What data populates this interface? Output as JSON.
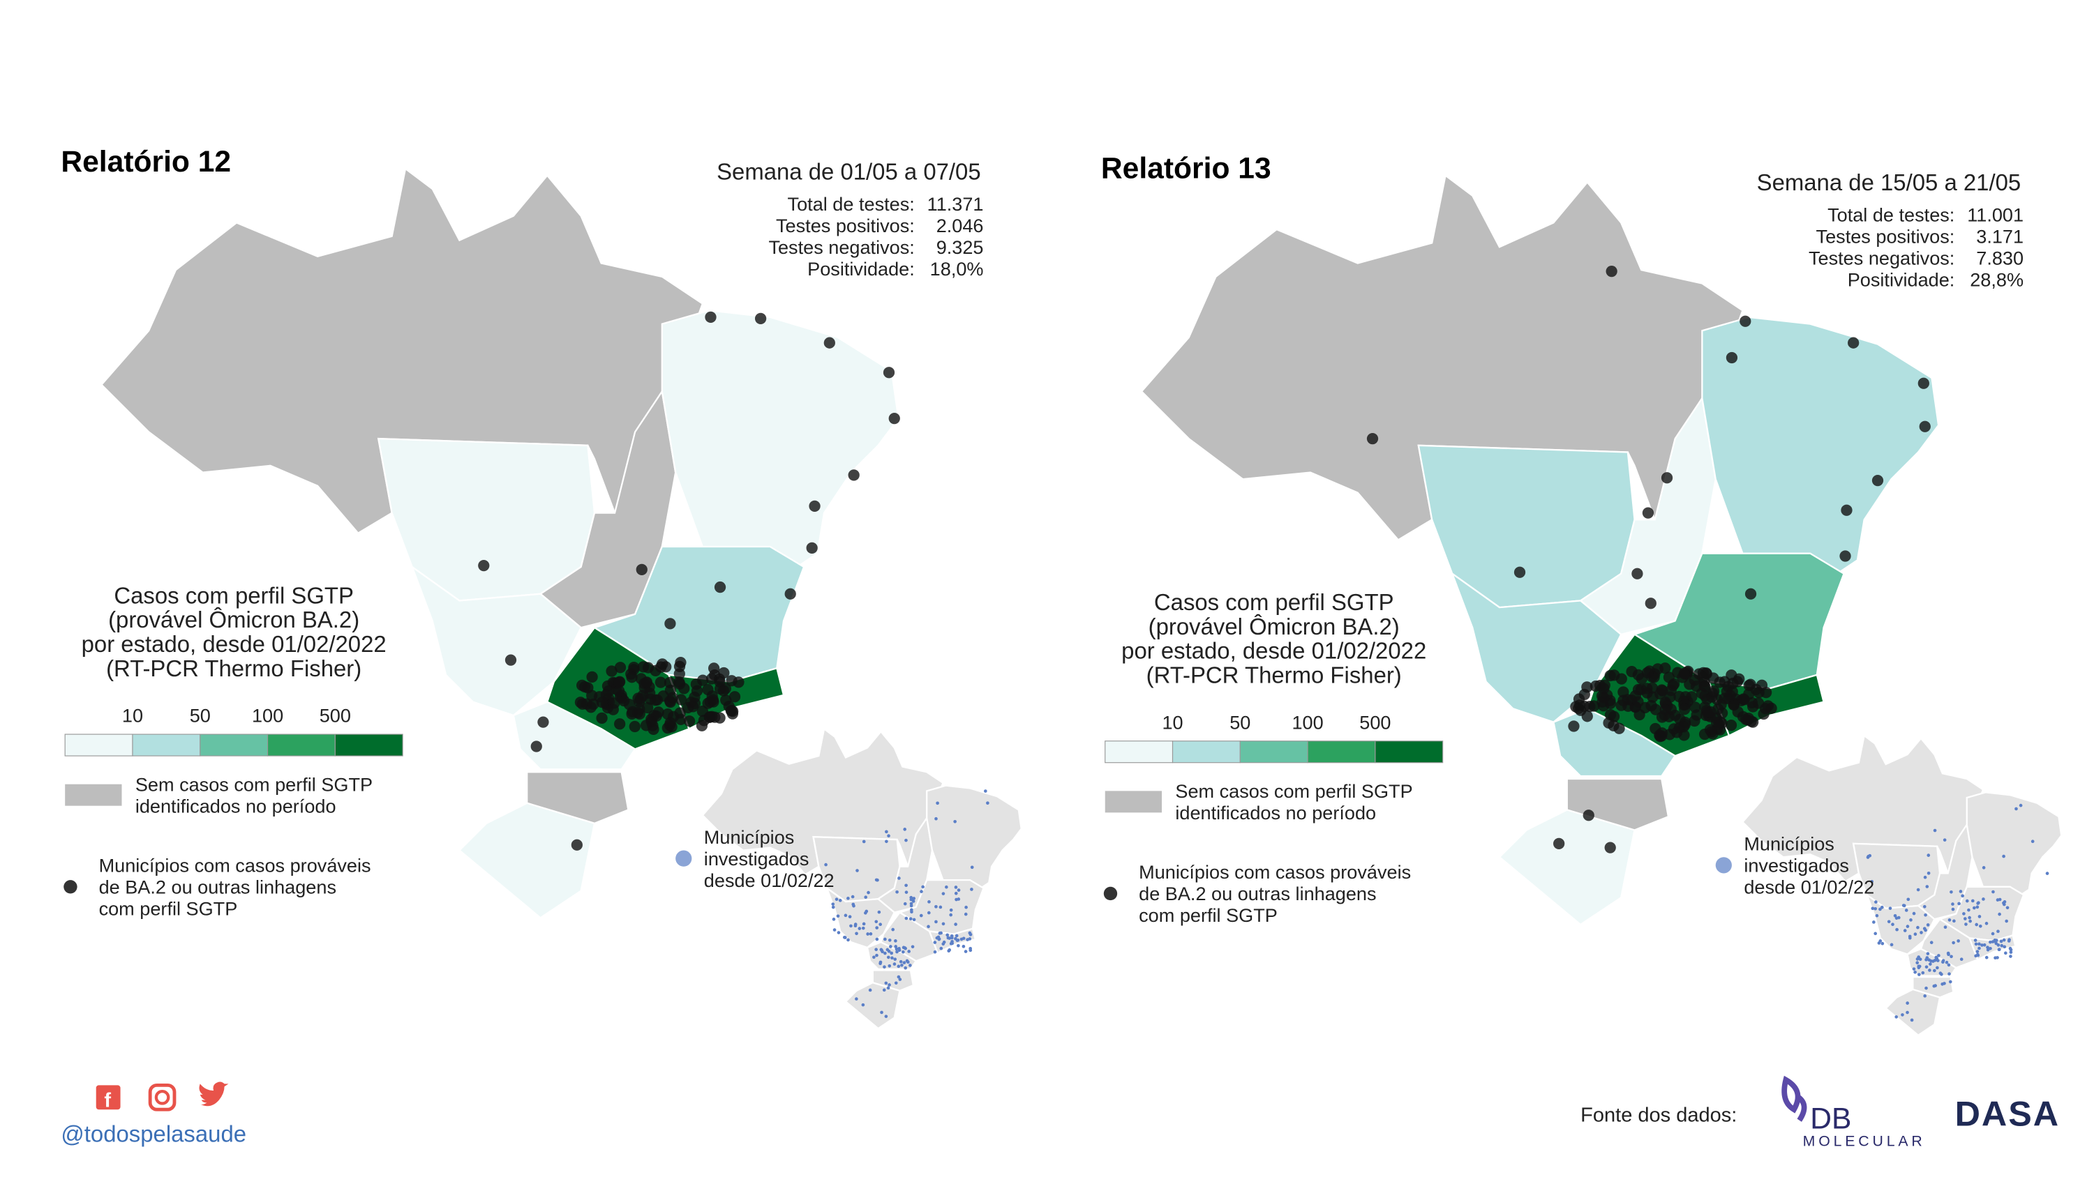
{
  "panels": [
    {
      "title": "Relatório 12",
      "week": "Semana de 01/05 a 07/05",
      "stats": [
        {
          "label": "Total de testes:",
          "value": "11.371"
        },
        {
          "label": "Testes positivos:",
          "value": "2.046"
        },
        {
          "label": "Testes negativos:",
          "value": "9.325"
        },
        {
          "label": "Positividade:",
          "value": "18,0%"
        }
      ],
      "legend_title": [
        "Casos com perfil SGTP",
        "(provável Ômicron BA.2)",
        "por estado, desde 01/02/2022",
        "(RT-PCR Thermo Fisher)"
      ],
      "legend_ticks": [
        10,
        50,
        100,
        500
      ],
      "no_cases": [
        "Sem casos com perfil SGTP",
        "identificados no período"
      ],
      "municipalities": [
        "Municípios com casos prováveis",
        "de BA.2 ou outras linhagens",
        "com perfil SGTP"
      ],
      "investigated": [
        "Municípios",
        "investigados",
        "desde 01/02/22"
      ]
    },
    {
      "title": "Relatório 13",
      "week": "Semana de 15/05 a 21/05",
      "stats": [
        {
          "label": "Total de testes:",
          "value": "11.001"
        },
        {
          "label": "Testes positivos:",
          "value": "3.171"
        },
        {
          "label": "Testes negativos:",
          "value": "7.830"
        },
        {
          "label": "Positividade:",
          "value": "28,8%"
        }
      ],
      "legend_title": [
        "Casos com perfil SGTP",
        "(provável Ômicron BA.2)",
        "por estado, desde 01/02/2022",
        "(RT-PCR Thermo Fisher)"
      ],
      "legend_ticks": [
        10,
        50,
        100,
        500
      ],
      "no_cases": [
        "Sem casos com perfil SGTP",
        "identificados no período"
      ],
      "municipalities": [
        "Municípios com casos prováveis",
        "de BA.2 ou outras linhagens",
        "com perfil SGTP"
      ],
      "investigated": [
        "Municípios",
        "investigados",
        "desde 01/02/22"
      ]
    }
  ],
  "legend_colors": [
    "#eef8f8",
    "#b2e0e0",
    "#66c2a4",
    "#2ca25f",
    "#006d2c"
  ],
  "no_case_color": "#bdbdbd",
  "footer": {
    "handle": "@todospelasaude",
    "source": "Fonte dos dados:",
    "logo1": "DB",
    "logo1_sub": "MOLECULAR",
    "logo2": "DASA"
  }
}
